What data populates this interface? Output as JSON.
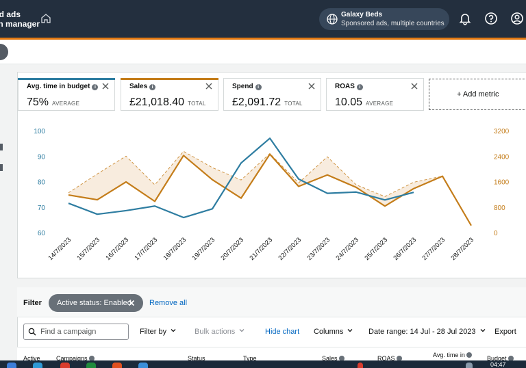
{
  "header": {
    "brand_line1": "ed ads",
    "brand_line2": "gn manager",
    "account_name": "Galaxy Beds",
    "account_sub": "Sponsored ads, multiple countries"
  },
  "metrics": [
    {
      "label": "Avg. time in budget",
      "value": "75%",
      "unit": "AVERAGE",
      "color": "#2e7da1"
    },
    {
      "label": "Sales",
      "value": "£21,018.40",
      "unit": "TOTAL",
      "color": "#c47d1a"
    },
    {
      "label": "Spend",
      "value": "£2,091.72",
      "unit": "TOTAL",
      "color": "#d5d9d9"
    },
    {
      "label": "ROAS",
      "value": "10.05",
      "unit": "AVERAGE",
      "color": "#d5d9d9"
    }
  ],
  "add_metric_label": "+ Add metric",
  "chart_data": {
    "type": "line",
    "x": [
      "14/7/2023",
      "15/7/2023",
      "16/7/2023",
      "17/7/2023",
      "18/7/2023",
      "19/7/2023",
      "20/7/2023",
      "21/7/2023",
      "22/7/2023",
      "23/7/2023",
      "24/7/2023",
      "25/7/2023",
      "26/7/2023",
      "27/7/2023",
      "28/7/2023"
    ],
    "y_left": {
      "ticks": [
        100,
        90,
        80,
        70,
        60
      ],
      "lim": [
        60,
        100
      ]
    },
    "y_right": {
      "ticks": [
        3200,
        2400,
        1600,
        800,
        0
      ],
      "lim": [
        0,
        3200
      ]
    },
    "series": [
      {
        "axis": "left",
        "color": "#2e7da1",
        "values": [
          71.5,
          67.2,
          68.6,
          70.4,
          65.9,
          69.3,
          87.3,
          97.0,
          81.0,
          75.4,
          75.9,
          72.8,
          75.8,
          null,
          null
        ]
      },
      {
        "axis": "right",
        "color": "#c47d1a",
        "values": [
          1180,
          1030,
          1590,
          980,
          2420,
          1660,
          1080,
          2460,
          1450,
          1810,
          1420,
          830,
          1380,
          1770,
          220
        ]
      },
      {
        "axis": "right",
        "color": "#c47d1a",
        "style": "dashed",
        "values": [
          1250,
          1840,
          2400,
          1500,
          2550,
          2040,
          1650,
          2480,
          1560,
          2380,
          1500,
          1130,
          1580,
          1770,
          null
        ]
      }
    ],
    "grid": false
  },
  "filter": {
    "label": "Filter",
    "chip": "Active status: Enabled",
    "remove_all": "Remove all"
  },
  "toolbar": {
    "search_placeholder": "Find a campaign",
    "filter_by": "Filter by",
    "bulk_actions": "Bulk actions",
    "hide_chart": "Hide chart",
    "columns": "Columns",
    "date_range": "Date range: 14 Jul - 28 Jul 2023",
    "export": "Export"
  },
  "table_headers": [
    "Active",
    "Campaigns",
    "Status",
    "Type",
    "Sales",
    "ROAS",
    "Avg. time in",
    "Budget"
  ],
  "taskbar": {
    "clock": "04:47"
  }
}
